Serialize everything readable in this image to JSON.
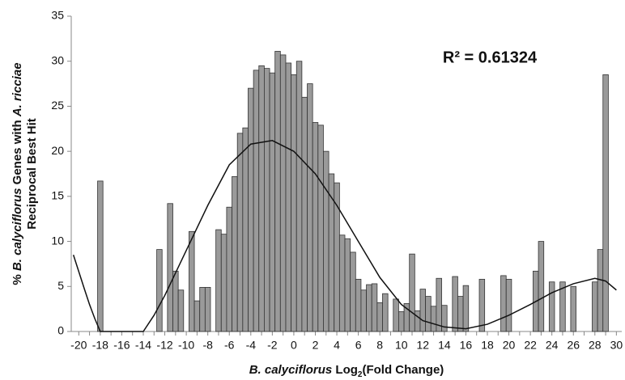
{
  "chart_data": {
    "type": "bar",
    "annotation": "R² = 0.61324",
    "ylabel": {
      "line1": [
        "% ",
        "B. calyciflorus",
        " Genes with ",
        "A. ricciae"
      ],
      "line2": "Reciprocal Best Hit"
    },
    "xlabel": [
      "B. calyciflorus",
      " Log",
      "2",
      "(Fold Change)"
    ],
    "xlim": [
      -20.7,
      30.5
    ],
    "ylim": [
      0,
      35
    ],
    "xticks": [
      -20,
      -18,
      -16,
      -14,
      -12,
      -10,
      -8,
      -6,
      -4,
      -2,
      0,
      2,
      4,
      6,
      8,
      10,
      12,
      14,
      16,
      18,
      20,
      22,
      24,
      26,
      28,
      30
    ],
    "yticks": [
      0,
      5,
      10,
      15,
      20,
      25,
      30,
      35
    ],
    "bar_width": 0.5,
    "color": "#9a9a9a",
    "x": [
      -18,
      -12.5,
      -11.5,
      -11,
      -10.5,
      -9.5,
      -9,
      -8.5,
      -8,
      -7,
      -6.5,
      -6,
      -5.5,
      -5,
      -4.5,
      -4,
      -3.5,
      -3,
      -2.5,
      -2,
      -1.5,
      -1,
      -0.5,
      0,
      0.5,
      1,
      1.5,
      2,
      2.5,
      3,
      3.5,
      4,
      4.5,
      5,
      5.5,
      6,
      6.5,
      7,
      7.5,
      8,
      8.5,
      9.5,
      10,
      10.5,
      11,
      11.5,
      12,
      12.5,
      13,
      13.5,
      14,
      15,
      15.5,
      16,
      17.5,
      19.5,
      20,
      22.5,
      23,
      24,
      25,
      26,
      28,
      28.5,
      29
    ],
    "values": [
      16.7,
      9.1,
      14.2,
      6.7,
      4.6,
      11.1,
      3.4,
      4.9,
      4.9,
      11.3,
      10.8,
      13.8,
      17.2,
      22,
      22.6,
      27,
      29,
      29.5,
      29.2,
      28.7,
      31.1,
      30.7,
      29.8,
      28.5,
      30,
      26,
      27.5,
      23.2,
      22.9,
      20,
      17.5,
      16.5,
      10.7,
      10.3,
      8.8,
      5.8,
      4.6,
      5.2,
      5.3,
      3.2,
      4.2,
      3.6,
      2.2,
      3.1,
      8.6,
      2.3,
      4.7,
      3.9,
      2.8,
      5.9,
      2.9,
      6.1,
      3.9,
      5.1,
      5.8,
      6.2,
      5.8,
      6.7,
      10,
      5.5,
      5.5,
      5,
      5.5,
      9.1,
      28.5
    ],
    "trendline": {
      "x": [
        -20.5,
        -19.5,
        -19,
        -18.5,
        -18,
        -14,
        -13,
        -12,
        -10,
        -8,
        -6,
        -4,
        -2,
        0,
        2,
        4,
        6,
        8,
        10,
        12,
        14,
        16,
        18,
        20,
        22,
        24,
        26,
        28,
        29,
        30
      ],
      "values": [
        8.5,
        4.8,
        3,
        1.4,
        0,
        0,
        1.8,
        4,
        9,
        14,
        18.5,
        20.8,
        21.2,
        20,
        17.5,
        14,
        10,
        6,
        3,
        1.2,
        0.5,
        0.3,
        0.8,
        1.8,
        3,
        4.3,
        5.3,
        5.9,
        5.6,
        4.6
      ]
    }
  }
}
